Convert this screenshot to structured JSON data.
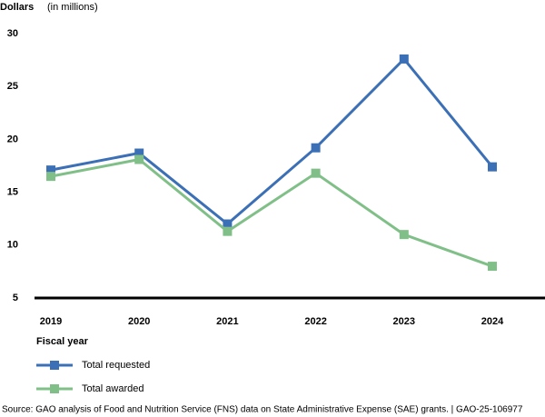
{
  "chart_data": {
    "type": "line",
    "y_label": "Dollars",
    "y_unit": "(in millions)",
    "x_label": "Fiscal year",
    "categories": [
      "2019",
      "2020",
      "2021",
      "2022",
      "2023",
      "2024"
    ],
    "series": [
      {
        "name": "Total requested",
        "color": "#3b6fb6",
        "values": [
          17.1,
          18.7,
          12.0,
          19.2,
          27.6,
          17.4
        ]
      },
      {
        "name": "Total awarded",
        "color": "#80c088",
        "values": [
          16.5,
          18.1,
          11.3,
          16.8,
          11.0,
          8.0
        ]
      }
    ],
    "ylim": [
      5,
      30
    ],
    "yticks": [
      5,
      10,
      15,
      20,
      25,
      30
    ],
    "source": "Source: GAO analysis of Food and Nutrition Service (FNS) data on State Administrative Expense (SAE) grants.  |  GAO-25-106977"
  }
}
